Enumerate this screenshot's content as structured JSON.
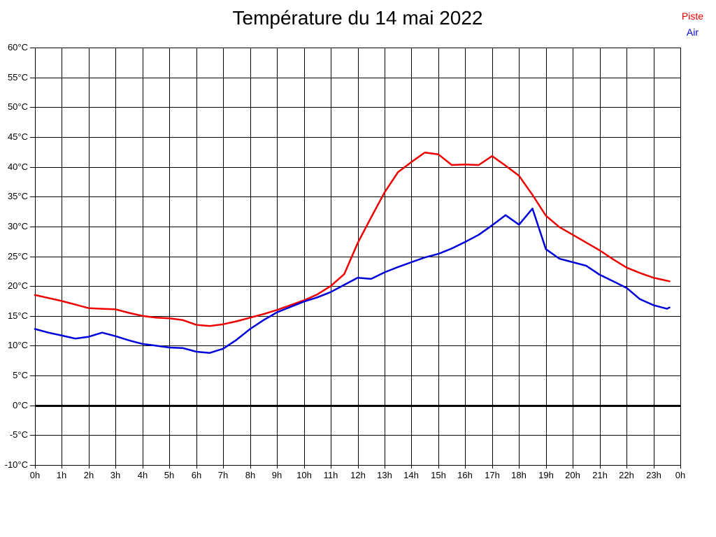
{
  "title": "Température du 14 mai 2022",
  "legend": {
    "position": "top-right",
    "items": [
      {
        "label": "Piste",
        "color": "#ee0000"
      },
      {
        "label": "Air",
        "color": "#0000dd"
      }
    ]
  },
  "colors": {
    "background": "#ffffff",
    "grid": "#000000",
    "zero_line": "#000000",
    "text": "#000000",
    "piste_line": "#ee0000",
    "air_line": "#0000dd"
  },
  "chart_data": {
    "type": "line",
    "title": "Température du 14 mai 2022",
    "xlabel": "",
    "ylabel": "",
    "xlim": [
      0,
      24
    ],
    "ylim": [
      -10,
      60
    ],
    "grid": true,
    "legend_position": "top-right",
    "zero_line": {
      "y": 0,
      "stroke_width": 3
    },
    "x_ticks": [
      0,
      1,
      2,
      3,
      4,
      5,
      6,
      7,
      8,
      9,
      10,
      11,
      12,
      13,
      14,
      15,
      16,
      17,
      18,
      19,
      20,
      21,
      22,
      23,
      24
    ],
    "x_tick_labels": [
      "0h",
      "1h",
      "2h",
      "3h",
      "4h",
      "5h",
      "6h",
      "7h",
      "8h",
      "9h",
      "10h",
      "11h",
      "12h",
      "13h",
      "14h",
      "15h",
      "16h",
      "17h",
      "18h",
      "19h",
      "20h",
      "21h",
      "22h",
      "23h",
      "0h"
    ],
    "y_ticks": [
      60,
      55,
      50,
      45,
      40,
      35,
      30,
      25,
      20,
      15,
      10,
      5,
      0,
      -5,
      -10
    ],
    "y_tick_labels": [
      "60°C",
      "55°C",
      "50°C",
      "45°C",
      "40°C",
      "35°C",
      "30°C",
      "25°C",
      "20°C",
      "15°C",
      "10°C",
      "5°C",
      "0°C",
      "-5°C",
      "-10°C"
    ],
    "x": [
      0,
      0.5,
      1,
      1.5,
      2,
      2.5,
      3,
      3.5,
      4,
      4.5,
      5,
      5.5,
      6,
      6.5,
      7,
      7.5,
      8,
      8.5,
      9,
      9.5,
      10,
      10.5,
      11,
      11.5,
      12,
      12.5,
      13,
      13.5,
      14,
      14.5,
      15,
      15.5,
      16,
      16.5,
      17,
      17.5,
      18,
      18.5,
      19,
      19.5,
      20,
      20.5,
      21,
      21.5,
      22,
      22.5,
      23,
      23.5,
      23.6
    ],
    "series": [
      {
        "name": "Piste",
        "color": "#ee0000",
        "stroke_width": 2.5,
        "values": [
          18.5,
          18.0,
          17.5,
          16.9,
          16.3,
          16.2,
          16.1,
          15.5,
          15.0,
          14.7,
          14.6,
          14.3,
          13.5,
          13.3,
          13.6,
          14.1,
          14.7,
          15.3,
          16.0,
          16.8,
          17.6,
          18.6,
          20.0,
          22.0,
          27.2,
          31.5,
          35.7,
          39.1,
          40.8,
          42.4,
          42.1,
          40.3,
          40.4,
          40.3,
          41.8,
          40.2,
          38.5,
          35.3,
          31.8,
          29.9,
          28.6,
          27.3,
          26.0,
          24.5,
          23.1,
          22.2,
          21.4,
          20.9,
          20.8
        ]
      },
      {
        "name": "Air",
        "color": "#0000dd",
        "stroke_width": 2.5,
        "values": [
          12.8,
          12.2,
          11.7,
          11.2,
          11.5,
          12.2,
          11.6,
          10.9,
          10.3,
          10.0,
          9.7,
          9.6,
          9.0,
          8.8,
          9.5,
          11.0,
          12.8,
          14.3,
          15.6,
          16.5,
          17.4,
          18.1,
          19.0,
          20.2,
          21.4,
          21.2,
          22.3,
          23.2,
          24.0,
          24.8,
          25.4,
          26.3,
          27.4,
          28.6,
          30.2,
          31.9,
          30.3,
          33.0,
          26.2,
          24.6,
          24.0,
          23.4,
          21.9,
          20.8,
          19.7,
          17.8,
          16.8,
          16.2,
          16.4
        ]
      }
    ]
  }
}
